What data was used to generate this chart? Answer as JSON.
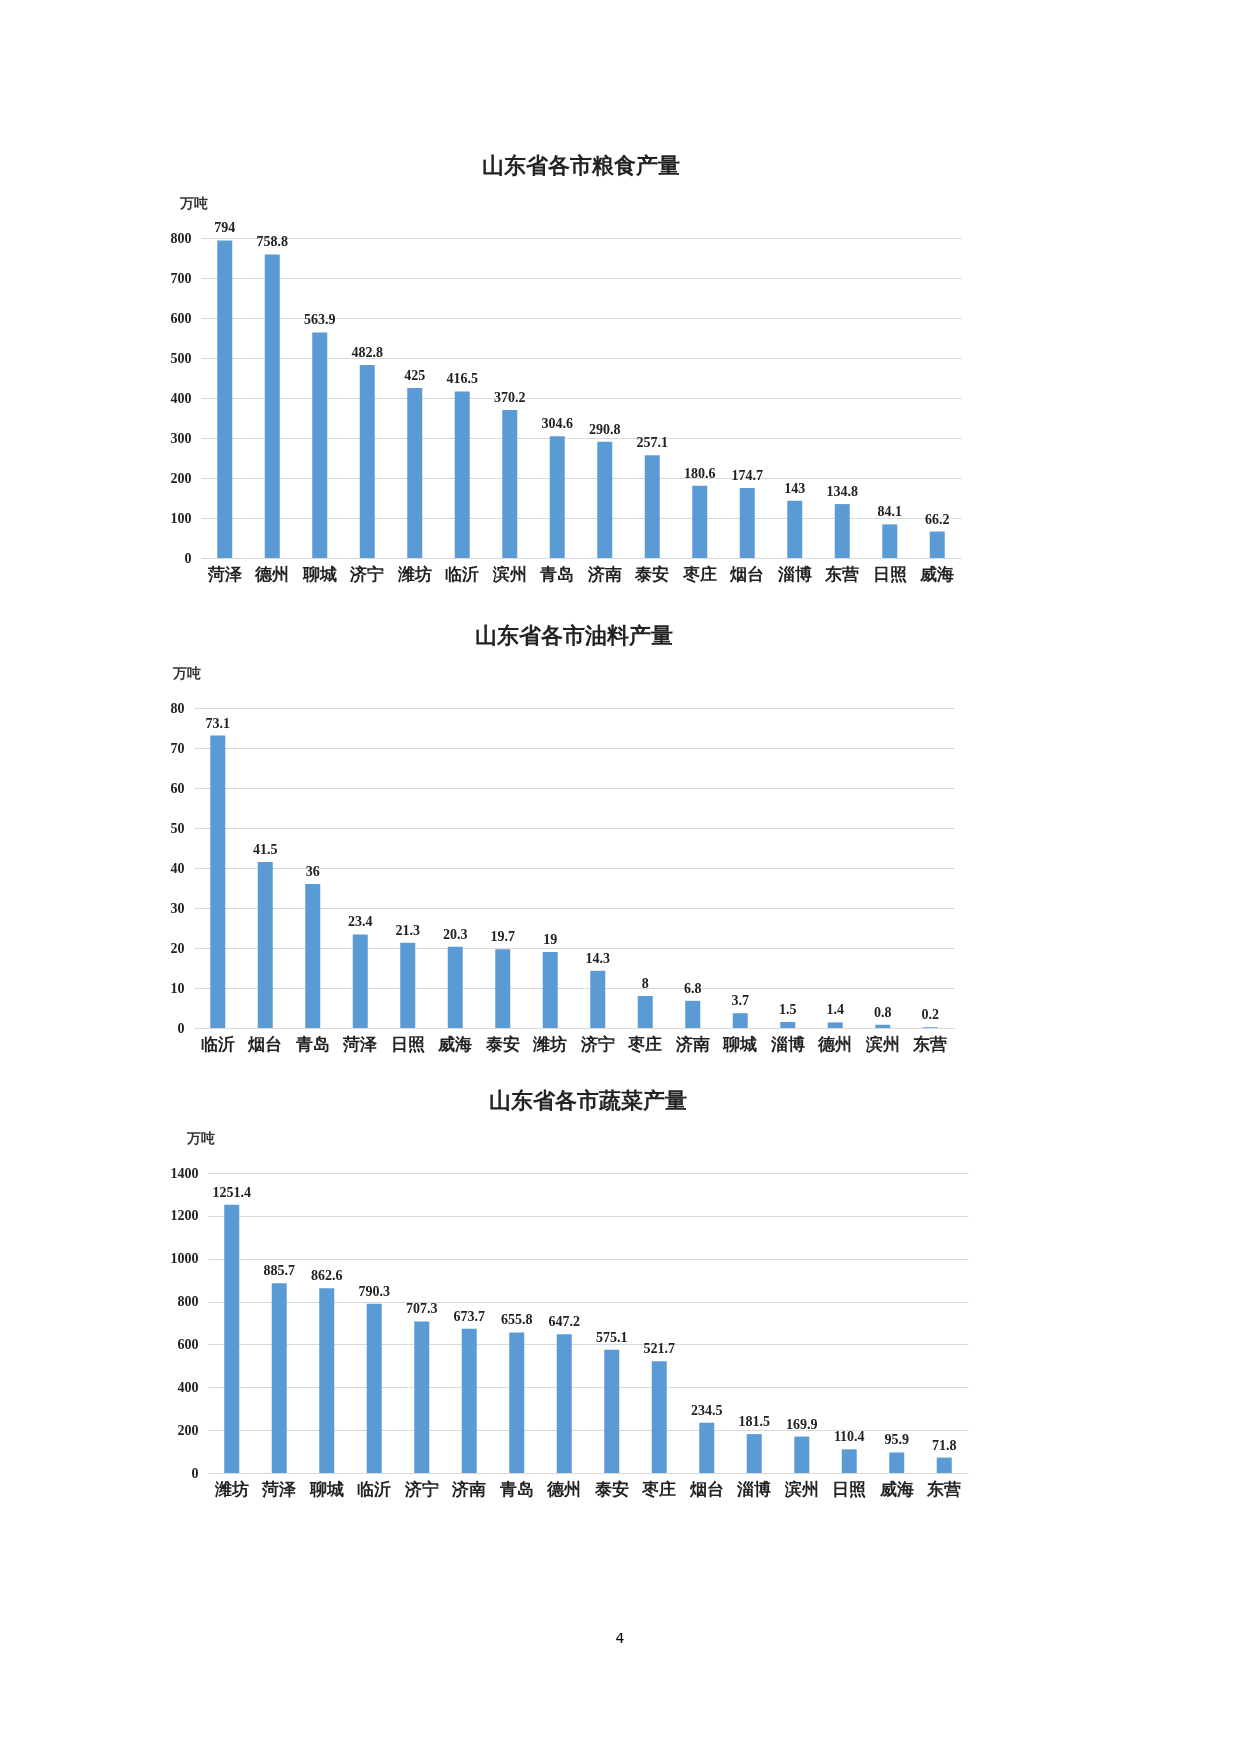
{
  "chart_data": [
    {
      "type": "bar",
      "title": "山东省各市粮食产量",
      "ylabel": "万吨",
      "categories": [
        "菏泽",
        "德州",
        "聊城",
        "济宁",
        "潍坊",
        "临沂",
        "滨州",
        "青岛",
        "济南",
        "泰安",
        "枣庄",
        "烟台",
        "淄博",
        "东营",
        "日照",
        "威海"
      ],
      "series": [
        {
          "color": "#5b9bd5",
          "values": [
            794,
            758.8,
            563.9,
            482.8,
            425,
            416.5,
            370.2,
            304.6,
            290.8,
            257.1,
            180.6,
            174.7,
            143,
            134.8,
            84.1,
            66.2
          ]
        }
      ],
      "ylim": [
        0,
        800
      ],
      "yticks": [
        0,
        100,
        200,
        300,
        400,
        500,
        600,
        700,
        800
      ],
      "grid": "y",
      "data_labels": true
    },
    {
      "type": "bar",
      "title": "山东省各市油料产量",
      "ylabel": "万吨",
      "categories": [
        "临沂",
        "烟台",
        "青岛",
        "菏泽",
        "日照",
        "威海",
        "泰安",
        "潍坊",
        "济宁",
        "枣庄",
        "济南",
        "聊城",
        "淄博",
        "德州",
        "滨州",
        "东营"
      ],
      "series": [
        {
          "color": "#5b9bd5",
          "values": [
            73.1,
            41.5,
            36,
            23.4,
            21.3,
            20.3,
            19.7,
            19,
            14.3,
            8,
            6.8,
            3.7,
            1.5,
            1.4,
            0.8,
            0.2
          ]
        }
      ],
      "ylim": [
        0,
        80
      ],
      "yticks": [
        0,
        10,
        20,
        30,
        40,
        50,
        60,
        70,
        80
      ],
      "grid": "y",
      "data_labels": true
    },
    {
      "type": "bar",
      "title": "山东省各市蔬菜产量",
      "ylabel": "万吨",
      "categories": [
        "潍坊",
        "菏泽",
        "聊城",
        "临沂",
        "济宁",
        "济南",
        "青岛",
        "德州",
        "泰安",
        "枣庄",
        "烟台",
        "淄博",
        "滨州",
        "日照",
        "威海",
        "东营"
      ],
      "series": [
        {
          "color": "#5b9bd5",
          "values": [
            1251.4,
            885.7,
            862.6,
            790.3,
            707.3,
            673.7,
            655.8,
            647.2,
            575.1,
            521.7,
            234.5,
            181.5,
            169.9,
            110.4,
            95.9,
            71.8
          ]
        }
      ],
      "ylim": [
        0,
        1400
      ],
      "yticks": [
        0,
        200,
        400,
        600,
        800,
        1000,
        1200,
        1400
      ],
      "grid": "y",
      "data_labels": true,
      "annotations": [
        "4"
      ]
    }
  ]
}
